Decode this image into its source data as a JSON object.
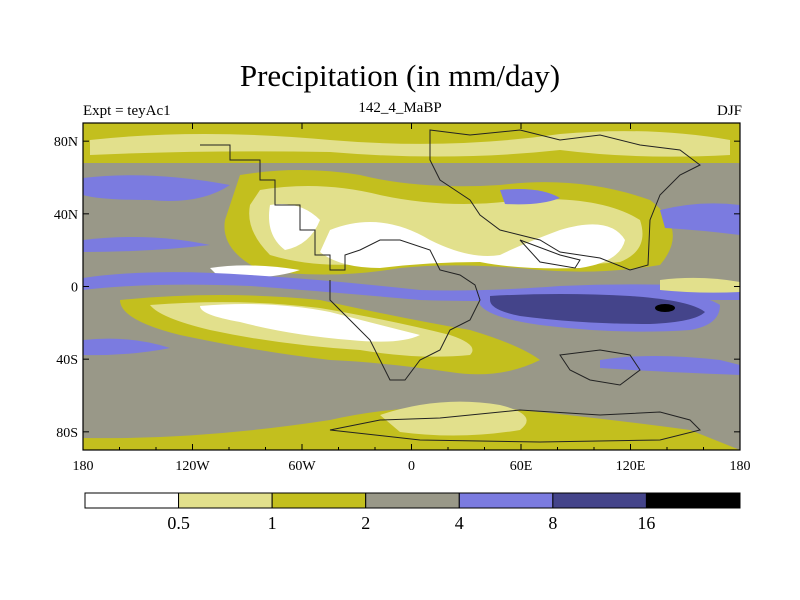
{
  "header": {
    "title": "Precipitation (in mm/day)",
    "left": "Expt = teyAc1",
    "center": "142_4_MaBP",
    "right": "DJF"
  },
  "chart_data": {
    "type": "heatmap",
    "title": "Precipitation (in mm/day)",
    "subtitle_left": "Expt = teyAc1",
    "subtitle_center": "142_4_MaBP",
    "subtitle_right": "DJF",
    "x_ticks": [
      {
        "value": -180,
        "label": "180"
      },
      {
        "value": -120,
        "label": "120W"
      },
      {
        "value": -60,
        "label": "60W"
      },
      {
        "value": 0,
        "label": "0"
      },
      {
        "value": 60,
        "label": "60E"
      },
      {
        "value": 120,
        "label": "120E"
      },
      {
        "value": 180,
        "label": "180"
      }
    ],
    "y_ticks": [
      {
        "value": 80,
        "label": "80N"
      },
      {
        "value": 40,
        "label": "40N"
      },
      {
        "value": 0,
        "label": "0"
      },
      {
        "value": -40,
        "label": "40S"
      },
      {
        "value": -80,
        "label": "80S"
      }
    ],
    "xlim": [
      -180,
      180
    ],
    "ylim": [
      -90,
      90
    ],
    "levels": [
      0.5,
      1,
      2,
      4,
      8,
      16
    ],
    "colors": [
      "#ffffff",
      "#e2e08c",
      "#c3bf1e",
      "#999888",
      "#7b7be0",
      "#44448a",
      "#000000"
    ],
    "colorbar_labels": [
      "0.5",
      "1",
      "2",
      "4",
      "8",
      "16"
    ]
  }
}
